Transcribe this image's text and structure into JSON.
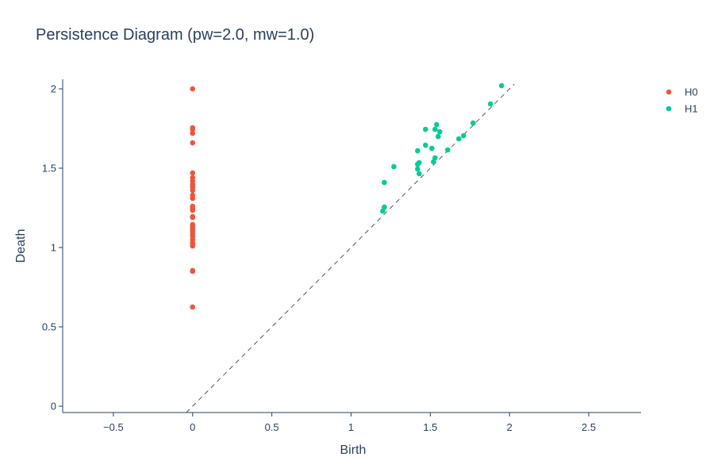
{
  "chart_data": {
    "type": "scatter",
    "title": "Persistence Diagram (pw=2.0, mw=1.0)",
    "xlabel": "Birth",
    "ylabel": "Death",
    "xlim": [
      -0.82,
      2.83
    ],
    "ylim": [
      -0.04,
      2.06
    ],
    "xticks": [
      -0.5,
      0,
      0.5,
      1,
      1.5,
      2,
      2.5
    ],
    "xtick_labels": [
      "−0.5",
      "0",
      "0.5",
      "1",
      "1.5",
      "2",
      "2.5"
    ],
    "yticks": [
      0,
      0.5,
      1,
      1.5,
      2
    ],
    "ytick_labels": [
      "0",
      "0.5",
      "1",
      "1.5",
      "2"
    ],
    "grid": false,
    "legend_position": "top-right",
    "diagonal": {
      "from": [
        -0.04,
        -0.04
      ],
      "to": [
        2.03,
        2.03
      ],
      "color": "#555555",
      "style": "dashed"
    },
    "series": [
      {
        "name": "H0",
        "color": "#EF553B",
        "x": [
          0,
          0,
          0,
          0,
          0,
          0,
          0,
          0,
          0,
          0,
          0,
          0,
          0,
          0,
          0,
          0,
          0,
          0,
          0,
          0,
          0,
          0,
          0,
          0,
          0,
          0,
          0,
          0,
          0,
          0,
          0,
          0
        ],
        "y": [
          2.0,
          1.755,
          1.745,
          1.72,
          1.66,
          1.47,
          1.44,
          1.42,
          1.4,
          1.39,
          1.38,
          1.36,
          1.33,
          1.31,
          1.26,
          1.245,
          1.235,
          1.195,
          1.19,
          1.145,
          1.13,
          1.115,
          1.1,
          1.085,
          1.07,
          1.05,
          1.03,
          1.02,
          1.01,
          0.855,
          0.85,
          0.625
        ]
      },
      {
        "name": "H1",
        "color": "#00CC96",
        "x": [
          1.95,
          1.88,
          1.77,
          1.71,
          1.68,
          1.61,
          1.56,
          1.55,
          1.54,
          1.53,
          1.53,
          1.52,
          1.51,
          1.47,
          1.47,
          1.42,
          1.42,
          1.43,
          1.42,
          1.43,
          1.27,
          1.21,
          1.21,
          1.2
        ],
        "y": [
          2.02,
          1.905,
          1.785,
          1.705,
          1.685,
          1.615,
          1.73,
          1.7,
          1.775,
          1.745,
          1.565,
          1.54,
          1.625,
          1.745,
          1.645,
          1.61,
          1.525,
          1.535,
          1.495,
          1.465,
          1.51,
          1.41,
          1.255,
          1.23
        ]
      }
    ]
  }
}
